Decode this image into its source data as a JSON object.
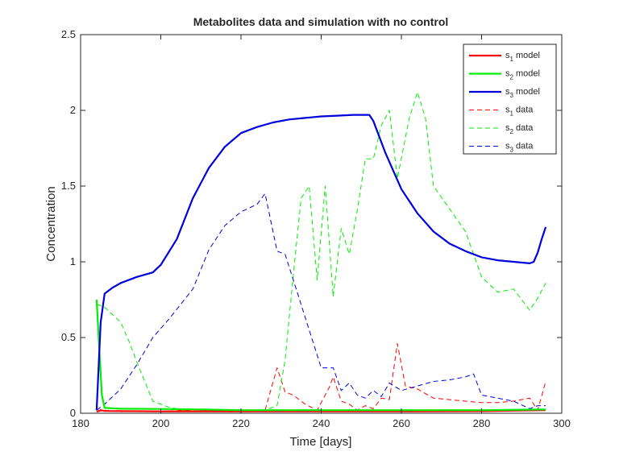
{
  "chart_data": {
    "type": "line",
    "title": "Metabolites data and simulation with no control",
    "xlabel": "Time [days]",
    "ylabel": "Concentration",
    "xlim": [
      180,
      300
    ],
    "ylim": [
      0,
      2.5
    ],
    "xticks": [
      180,
      200,
      220,
      240,
      260,
      280,
      300
    ],
    "yticks": [
      0,
      0.5,
      1,
      1.5,
      2,
      2.5
    ],
    "xtick_labels": [
      "180",
      "200",
      "220",
      "240",
      "260",
      "280",
      "300"
    ],
    "ytick_labels": [
      "0",
      "0.5",
      "1",
      "1.5",
      "2",
      "2.5"
    ],
    "grid": false,
    "legend_position": "top-right",
    "series": [
      {
        "name": "s1 model",
        "label_base": "s",
        "label_sub": "1",
        "label_suffix": " model",
        "color": "#ff0000",
        "style": "solid",
        "x": [
          184,
          185,
          186,
          200,
          210,
          220,
          240,
          260,
          280,
          296
        ],
        "y": [
          0.01,
          0.02,
          0.015,
          0.012,
          0.013,
          0.012,
          0.012,
          0.012,
          0.014,
          0.02
        ]
      },
      {
        "name": "s2 model",
        "label_base": "s",
        "label_sub": "2",
        "label_suffix": " model",
        "color": "#00ee00",
        "style": "solid",
        "x": [
          184,
          184.6,
          185.3,
          186,
          190,
          200,
          210,
          220,
          240,
          260,
          280,
          296
        ],
        "y": [
          0.75,
          0.45,
          0.12,
          0.035,
          0.03,
          0.028,
          0.025,
          0.02,
          0.02,
          0.02,
          0.02,
          0.025
        ]
      },
      {
        "name": "s3 model",
        "label_base": "s",
        "label_sub": "3",
        "label_suffix": " model",
        "color": "#0000dd",
        "style": "solid",
        "x": [
          184,
          185,
          186,
          188,
          190,
          194,
          198,
          200,
          204,
          208,
          212,
          216,
          220,
          224,
          228,
          232,
          236,
          240,
          244,
          248,
          252,
          253,
          256,
          260,
          264,
          268,
          272,
          276,
          280,
          284,
          288,
          292,
          293,
          294,
          295,
          296
        ],
        "y": [
          0.02,
          0.6,
          0.79,
          0.83,
          0.86,
          0.9,
          0.93,
          0.98,
          1.15,
          1.42,
          1.62,
          1.76,
          1.85,
          1.89,
          1.92,
          1.94,
          1.95,
          1.96,
          1.965,
          1.97,
          1.97,
          1.93,
          1.72,
          1.48,
          1.32,
          1.2,
          1.12,
          1.07,
          1.03,
          1.01,
          1.0,
          0.99,
          1.0,
          1.06,
          1.15,
          1.23
        ]
      },
      {
        "name": "s1 data",
        "label_base": "s",
        "label_sub": "1",
        "label_suffix": " data",
        "color": "#ff0000",
        "style": "dashed",
        "x": [
          184,
          186,
          190,
          194,
          198,
          202,
          206,
          210,
          214,
          218,
          222,
          226,
          229,
          231,
          233,
          236,
          239,
          242,
          243,
          245,
          247,
          249,
          251,
          253,
          255,
          257,
          259,
          261,
          264,
          268,
          272,
          276,
          280,
          284,
          288,
          292,
          294,
          296
        ],
        "y": [
          0.01,
          0.02,
          0.01,
          0.015,
          0.01,
          0.015,
          0.02,
          0.01,
          0.02,
          0.01,
          0.015,
          0.02,
          0.3,
          0.14,
          0.12,
          0.06,
          0.02,
          0.17,
          0.24,
          0.08,
          0.06,
          0.02,
          0.05,
          0.03,
          0.1,
          0.09,
          0.46,
          0.18,
          0.16,
          0.1,
          0.09,
          0.08,
          0.07,
          0.07,
          0.08,
          0.1,
          0.02,
          0.21
        ]
      },
      {
        "name": "s2 data",
        "label_base": "s",
        "label_sub": "2",
        "label_suffix": " data",
        "color": "#00ee00",
        "style": "dashed",
        "x": [
          184,
          186,
          188,
          190,
          192,
          194,
          198,
          202,
          206,
          210,
          214,
          218,
          222,
          226,
          229,
          231,
          233,
          235,
          237,
          239,
          241,
          243,
          245,
          247,
          249,
          251,
          253,
          255,
          257,
          259,
          262,
          264,
          266,
          268,
          272,
          276,
          280,
          284,
          288,
          292,
          294,
          296
        ],
        "y": [
          0.72,
          0.7,
          0.65,
          0.6,
          0.48,
          0.34,
          0.08,
          0.04,
          0.02,
          0.01,
          0.01,
          0.01,
          0.01,
          0.02,
          0.05,
          0.35,
          0.9,
          1.42,
          1.5,
          0.88,
          1.5,
          0.77,
          1.22,
          1.05,
          1.34,
          1.68,
          1.68,
          1.9,
          2.0,
          1.55,
          1.95,
          2.12,
          1.95,
          1.5,
          1.35,
          1.2,
          0.9,
          0.8,
          0.82,
          0.68,
          0.76,
          0.86
        ]
      },
      {
        "name": "s3 data",
        "label_base": "s",
        "label_sub": "3",
        "label_suffix": " data",
        "color": "#0000dd",
        "style": "dashed",
        "x": [
          184,
          186,
          190,
          194,
          198,
          202,
          208,
          212,
          216,
          220,
          224,
          226,
          229,
          231,
          234,
          237,
          240,
          243,
          245,
          247,
          249,
          251,
          253,
          255,
          257,
          260,
          264,
          268,
          272,
          276,
          278,
          280,
          284,
          288,
          292,
          294,
          296
        ],
        "y": [
          0.02,
          0.06,
          0.16,
          0.32,
          0.5,
          0.62,
          0.82,
          1.08,
          1.24,
          1.33,
          1.38,
          1.45,
          1.07,
          1.05,
          0.8,
          0.55,
          0.3,
          0.3,
          0.15,
          0.2,
          0.12,
          0.1,
          0.15,
          0.11,
          0.2,
          0.15,
          0.18,
          0.21,
          0.22,
          0.24,
          0.26,
          0.12,
          0.1,
          0.08,
          0.03,
          0.05,
          0.05
        ]
      }
    ]
  }
}
